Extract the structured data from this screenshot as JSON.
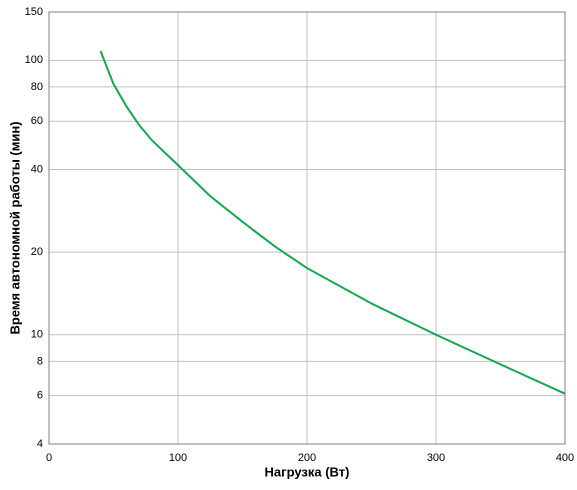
{
  "chart_data": {
    "type": "line",
    "x_label": "Нагрузка (Вт)",
    "y_label": "Время автономной работы (мин)",
    "series": [
      {
        "color": "#14a850",
        "x": [
          40,
          50,
          60,
          70,
          80,
          100,
          125,
          150,
          175,
          200,
          250,
          300,
          350,
          400
        ],
        "values": [
          108,
          82,
          68,
          58,
          51,
          41.5,
          32,
          25.8,
          21,
          17.5,
          13,
          10,
          7.8,
          6.1
        ]
      }
    ],
    "xlim": [
      0,
      400
    ],
    "xticks": [
      0,
      100,
      200,
      300,
      400
    ],
    "ylim": [
      4,
      150
    ],
    "yticks": [
      4,
      6,
      8,
      10,
      20,
      40,
      60,
      80,
      100,
      150
    ],
    "ylog": true,
    "grid": true
  }
}
